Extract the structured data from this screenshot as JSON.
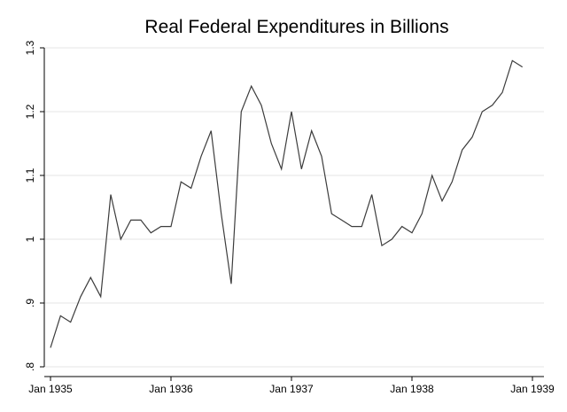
{
  "chart_data": {
    "type": "line",
    "title": "Real Federal Expenditures in Billions",
    "xlabel": "",
    "ylabel": "",
    "x_start": "Jan 1935",
    "x_end": "Jan 1939",
    "xlim": [
      "Jan 1935",
      "Jan 1939"
    ],
    "ylim": [
      0.8,
      1.3
    ],
    "grid": true,
    "legend": "none",
    "line_color": "#3c3c3c",
    "x_ticks": [
      "Jan 1935",
      "Jan 1936",
      "Jan 1937",
      "Jan 1938",
      "Jan 1939"
    ],
    "y_ticks": [
      {
        "value": 0.8,
        "label": ".8"
      },
      {
        "value": 0.9,
        "label": ".9"
      },
      {
        "value": 1.0,
        "label": "1"
      },
      {
        "value": 1.1,
        "label": "1.1"
      },
      {
        "value": 1.2,
        "label": "1.2"
      },
      {
        "value": 1.3,
        "label": "1.3"
      }
    ],
    "series": [
      {
        "x": [
          "Jan 1935",
          "Feb 1935",
          "Mar 1935",
          "Apr 1935",
          "May 1935",
          "Jun 1935",
          "Jul 1935",
          "Aug 1935",
          "Sep 1935",
          "Oct 1935",
          "Nov 1935",
          "Dec 1935",
          "Jan 1936",
          "Feb 1936",
          "Mar 1936",
          "Apr 1936",
          "May 1936",
          "Jun 1936",
          "Jul 1936",
          "Aug 1936",
          "Sep 1936",
          "Oct 1936",
          "Nov 1936",
          "Dec 1936",
          "Jan 1937",
          "Feb 1937",
          "Mar 1937",
          "Apr 1937",
          "May 1937",
          "Jun 1937",
          "Jul 1937",
          "Aug 1937",
          "Sep 1937",
          "Oct 1937",
          "Nov 1937",
          "Dec 1937",
          "Jan 1938",
          "Feb 1938",
          "Mar 1938",
          "Apr 1938",
          "May 1938",
          "Jun 1938",
          "Jul 1938",
          "Aug 1938",
          "Sep 1938",
          "Oct 1938",
          "Nov 1938",
          "Dec 1938"
        ],
        "values": [
          0.83,
          0.88,
          0.87,
          0.91,
          0.94,
          0.91,
          1.07,
          1.0,
          1.03,
          1.03,
          1.01,
          1.02,
          1.02,
          1.09,
          1.08,
          1.13,
          1.17,
          1.04,
          0.93,
          1.2,
          1.24,
          1.21,
          1.15,
          1.11,
          1.2,
          1.11,
          1.17,
          1.13,
          1.04,
          1.03,
          1.02,
          1.02,
          1.07,
          0.99,
          1.0,
          1.02,
          1.01,
          1.04,
          1.1,
          1.06,
          1.09,
          1.14,
          1.16,
          1.2,
          1.21,
          1.23,
          1.28,
          1.27
        ]
      }
    ]
  }
}
